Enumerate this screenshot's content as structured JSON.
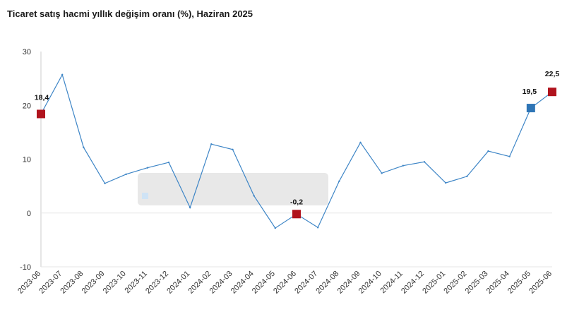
{
  "title": "Ticaret satış hacmi yıllık değişim oranı (%), Haziran 2025",
  "colors": {
    "line": "#3d85c6",
    "highlight_red": "#b0131d",
    "highlight_blue": "#2e75b6",
    "axis": "#cccccc"
  },
  "chart_data": {
    "type": "line",
    "title": "Ticaret satış hacmi yıllık değişim oranı (%), Haziran 2025",
    "xlabel": "",
    "ylabel": "",
    "ylim": [
      -10,
      30
    ],
    "yticks": [
      -10,
      0,
      10,
      20,
      30
    ],
    "grid": false,
    "categories": [
      "2023-06",
      "2023-07",
      "2023-08",
      "2023-09",
      "2023-10",
      "2023-11",
      "2023-12",
      "2024-01",
      "2024-02",
      "2024-03",
      "2024-04",
      "2024-05",
      "2024-06",
      "2024-07",
      "2024-08",
      "2024-09",
      "2024-10",
      "2024-11",
      "2024-12",
      "2025-01",
      "2025-02",
      "2025-03",
      "2025-04",
      "2025-05",
      "2025-06"
    ],
    "values": [
      18.4,
      25.7,
      12.2,
      5.5,
      7.2,
      8.4,
      9.4,
      1.0,
      12.8,
      11.8,
      3.2,
      -2.8,
      -0.2,
      -2.7,
      5.9,
      13.1,
      7.4,
      8.8,
      9.5,
      5.6,
      6.8,
      11.5,
      10.5,
      19.5,
      22.5
    ],
    "highlights": [
      {
        "index": 0,
        "label": "18,4",
        "color": "#b0131d"
      },
      {
        "index": 12,
        "label": "-0,2",
        "color": "#b0131d"
      },
      {
        "index": 23,
        "label": "19,5",
        "color": "#2e75b6"
      },
      {
        "index": 24,
        "label": "22,5",
        "color": "#b0131d"
      }
    ]
  }
}
